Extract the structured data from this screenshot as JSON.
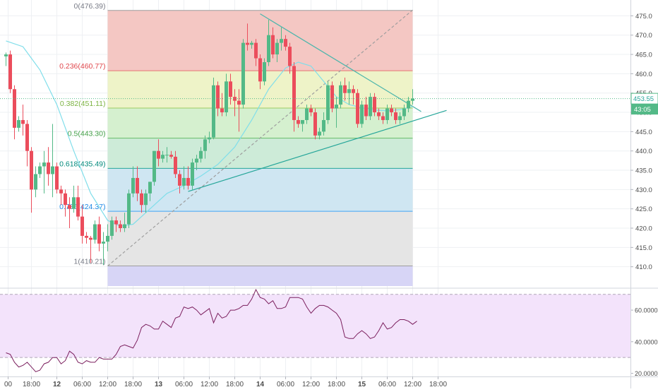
{
  "chart_data": [
    {
      "type": "candlestick",
      "title": "",
      "xlabel": "",
      "ylabel": "",
      "ylim": [
        405,
        478
      ],
      "price_ticks": [
        410,
        415,
        420,
        425,
        430,
        435,
        440,
        445,
        450,
        455,
        460,
        465,
        470,
        475
      ],
      "x_ticks": [
        {
          "label": "00",
          "bar": 0.5,
          "bold": false
        },
        {
          "label": "18:00",
          "bar": 6,
          "bold": false
        },
        {
          "label": "12",
          "bar": 12,
          "bold": true
        },
        {
          "label": "06:00",
          "bar": 18,
          "bold": false
        },
        {
          "label": "12:00",
          "bar": 24,
          "bold": false
        },
        {
          "label": "18:00",
          "bar": 30,
          "bold": false
        },
        {
          "label": "13",
          "bar": 36,
          "bold": true
        },
        {
          "label": "06:00",
          "bar": 42,
          "bold": false
        },
        {
          "label": "12:00",
          "bar": 48,
          "bold": false
        },
        {
          "label": "18:00",
          "bar": 54,
          "bold": false
        },
        {
          "label": "14",
          "bar": 60,
          "bold": true
        },
        {
          "label": "06:00",
          "bar": 66,
          "bold": false
        },
        {
          "label": "12:00",
          "bar": 72,
          "bold": false
        },
        {
          "label": "18:00",
          "bar": 78,
          "bold": false
        },
        {
          "label": "15",
          "bar": 84,
          "bold": true
        },
        {
          "label": "06:00",
          "bar": 90,
          "bold": false
        },
        {
          "label": "12:00",
          "bar": 96,
          "bold": false
        },
        {
          "label": "18:00",
          "bar": 102,
          "bold": false
        }
      ],
      "up_color": "#53b987",
      "down_color": "#eb4d5c",
      "candles": [
        [
          464.5,
          465.5,
          462,
          465
        ],
        [
          465,
          466,
          455,
          456
        ],
        [
          456,
          457,
          443,
          446
        ],
        [
          446,
          449,
          445,
          448
        ],
        [
          448,
          452,
          444,
          447
        ],
        [
          447,
          448,
          436,
          440
        ],
        [
          440,
          441,
          424,
          430
        ],
        [
          430,
          436,
          428,
          434
        ],
        [
          434,
          437,
          433,
          436
        ],
        [
          436,
          440,
          429,
          437
        ],
        [
          437,
          441,
          431,
          434
        ],
        [
          434,
          447,
          428,
          436
        ],
        [
          436,
          437,
          429,
          430
        ],
        [
          430,
          431,
          426,
          429
        ],
        [
          429,
          430,
          423,
          426
        ],
        [
          426,
          428,
          420,
          425
        ],
        [
          425,
          431,
          424,
          428
        ],
        [
          428,
          431,
          422,
          423
        ],
        [
          423,
          426,
          416,
          418
        ],
        [
          418,
          419,
          416,
          417.5
        ],
        [
          417.5,
          418,
          411,
          417
        ],
        [
          417,
          422,
          416,
          421
        ],
        [
          421,
          423,
          414,
          416
        ],
        [
          416,
          419,
          410.5,
          416.5
        ],
        [
          416.5,
          421,
          414,
          418
        ],
        [
          418,
          423,
          417,
          422
        ],
        [
          422,
          423,
          419,
          421
        ],
        [
          421,
          422,
          419,
          420
        ],
        [
          420,
          424,
          419,
          421
        ],
        [
          421,
          430,
          420,
          429
        ],
        [
          429,
          436,
          428,
          433
        ],
        [
          433,
          436,
          427,
          429
        ],
        [
          429,
          430,
          424,
          426
        ],
        [
          426,
          430,
          424,
          429
        ],
        [
          429,
          432,
          427,
          432
        ],
        [
          432,
          440,
          431,
          440
        ],
        [
          440,
          443,
          436,
          438
        ],
        [
          438,
          440,
          437,
          439
        ],
        [
          439,
          441,
          437,
          439
        ],
        [
          439,
          440,
          438,
          438.5
        ],
        [
          438.5,
          440,
          433,
          434
        ],
        [
          434,
          435,
          429,
          431
        ],
        [
          431,
          436,
          430,
          433
        ],
        [
          433,
          436,
          430,
          431
        ],
        [
          431,
          438,
          430,
          437
        ],
        [
          437,
          439,
          435,
          438
        ],
        [
          438,
          441,
          437,
          440
        ],
        [
          440,
          444,
          438,
          443
        ],
        [
          443,
          445,
          442,
          443.5
        ],
        [
          443.5,
          459,
          443,
          457
        ],
        [
          457,
          458,
          449,
          451
        ],
        [
          451,
          455,
          449,
          450
        ],
        [
          450,
          460,
          449,
          458
        ],
        [
          458,
          460,
          452,
          454
        ],
        [
          454,
          456,
          449,
          453
        ],
        [
          453,
          456,
          445,
          452
        ],
        [
          452,
          469,
          451,
          468
        ],
        [
          468,
          473,
          466,
          467.5
        ],
        [
          467.5,
          468.5,
          466.5,
          468
        ],
        [
          468,
          469,
          462,
          464
        ],
        [
          464,
          465,
          456,
          458
        ],
        [
          458,
          464,
          457,
          463
        ],
        [
          463,
          474,
          462,
          470
        ],
        [
          470,
          472,
          464,
          465
        ],
        [
          465,
          469,
          463,
          468
        ],
        [
          468,
          472,
          466,
          469
        ],
        [
          469,
          470,
          466,
          467
        ],
        [
          467,
          468,
          460,
          462
        ],
        [
          462,
          463,
          445,
          448
        ],
        [
          448,
          449,
          446,
          447
        ],
        [
          447,
          448,
          445,
          448
        ],
        [
          448,
          452,
          447,
          451
        ],
        [
          451,
          452,
          449,
          450
        ],
        [
          450,
          451,
          443,
          444
        ],
        [
          444,
          446,
          443,
          445
        ],
        [
          445,
          450,
          444,
          448
        ],
        [
          448,
          458,
          447,
          457
        ],
        [
          457,
          458,
          450,
          451
        ],
        [
          451,
          454,
          446,
          452
        ],
        [
          452,
          458,
          451,
          457
        ],
        [
          457,
          459,
          453,
          455
        ],
        [
          455,
          458,
          452,
          456
        ],
        [
          456,
          457,
          452,
          455
        ],
        [
          455,
          456,
          446,
          447
        ],
        [
          447,
          453,
          446,
          452
        ],
        [
          452,
          454,
          448,
          449
        ],
        [
          449,
          455,
          448,
          454
        ],
        [
          454,
          455,
          449,
          450
        ],
        [
          450,
          451,
          448,
          449
        ],
        [
          449,
          450,
          447,
          448
        ],
        [
          448,
          452,
          447,
          451
        ],
        [
          451,
          452,
          449,
          450
        ],
        [
          450,
          451,
          447,
          448
        ],
        [
          448,
          450,
          447,
          449
        ],
        [
          449,
          452,
          448,
          451
        ],
        [
          451,
          454,
          450,
          453
        ],
        [
          453,
          456,
          452,
          453.55
        ]
      ],
      "moving_average": [
        [
          0,
          468.5
        ],
        [
          4,
          467
        ],
        [
          8,
          461
        ],
        [
          12,
          452
        ],
        [
          16,
          440
        ],
        [
          20,
          429
        ],
        [
          24,
          422
        ],
        [
          27,
          420.5
        ],
        [
          30,
          421
        ],
        [
          34,
          425
        ],
        [
          38,
          429
        ],
        [
          42,
          431
        ],
        [
          46,
          433.5
        ],
        [
          50,
          436.5
        ],
        [
          54,
          441
        ],
        [
          58,
          448
        ],
        [
          62,
          456
        ],
        [
          66,
          461.5
        ],
        [
          69,
          463
        ],
        [
          72,
          462
        ],
        [
          75,
          458
        ],
        [
          78,
          454
        ],
        [
          81,
          452
        ],
        [
          84,
          451.2
        ],
        [
          87,
          450.6
        ],
        [
          90,
          450.4
        ],
        [
          93,
          450.7
        ],
        [
          96,
          451.5
        ]
      ],
      "trendlines": [
        {
          "from": [
            24,
            410.21
          ],
          "to": [
            96,
            476.5
          ],
          "style": "dashed",
          "color": "#9e9e9e"
        },
        {
          "from": [
            60,
            475.5
          ],
          "to": [
            98,
            450.2
          ],
          "style": "solid",
          "color": "#4db6ac"
        },
        {
          "from": [
            43,
            429.5
          ],
          "to": [
            104,
            450.5
          ],
          "style": "solid",
          "color": "#26a69a"
        }
      ],
      "fibonacci": {
        "start_bar": 24,
        "end_bar": 96,
        "levels": [
          {
            "label": "0(476.39)",
            "price": 476.39,
            "line": "#9e9e9e",
            "text": "#787b86"
          },
          {
            "label": "0.236(460.77)",
            "price": 460.77,
            "line": "#e57373",
            "text": "#e0474c"
          },
          {
            "label": "0.382(451.11)",
            "price": 451.11,
            "line": "#9ccc65",
            "text": "#7cb342"
          },
          {
            "label": "0.5(443.30)",
            "price": 443.3,
            "line": "#66bb6a",
            "text": "#43a047"
          },
          {
            "label": "0.618(435.49)",
            "price": 435.49,
            "line": "#26a69a",
            "text": "#00897b"
          },
          {
            "label": "0.786(424.37)",
            "price": 424.37,
            "line": "#42a5f5",
            "text": "#1e88e5"
          },
          {
            "label": "1(410.21)",
            "price": 410.21,
            "line": "#9e9e9e",
            "text": "#787b86"
          }
        ],
        "fills": [
          {
            "from": 476.39,
            "to": 460.77,
            "color": "#f4c7c3"
          },
          {
            "from": 460.77,
            "to": 451.11,
            "color": "#eef3c8"
          },
          {
            "from": 451.11,
            "to": 443.3,
            "color": "#d5f0cf"
          },
          {
            "from": 443.3,
            "to": 435.49,
            "color": "#cdebd8"
          },
          {
            "from": 435.49,
            "to": 424.37,
            "color": "#cfe6f2"
          },
          {
            "from": 424.37,
            "to": 410.21,
            "color": "#e5e5e5"
          },
          {
            "from": 410.21,
            "to": 405,
            "color": "#d7d5f6"
          }
        ]
      },
      "last_price": "453.55",
      "countdown": "43:05",
      "current_price_line": 453.55
    },
    {
      "type": "line",
      "title": "",
      "xlabel": "",
      "ylabel": "",
      "ylim": [
        18,
        73
      ],
      "ticks": [
        "20.0000",
        "40.0000",
        "60.0000"
      ],
      "tick_values": [
        20,
        40,
        60
      ],
      "band": [
        30,
        70
      ],
      "band_color": "#f3e3fb",
      "line_color": "#7b1f5e",
      "values": [
        [
          0,
          33
        ],
        [
          1,
          32
        ],
        [
          2,
          27
        ],
        [
          3,
          24
        ],
        [
          4,
          25
        ],
        [
          5,
          27
        ],
        [
          6,
          24
        ],
        [
          7,
          21
        ],
        [
          8,
          22
        ],
        [
          9,
          26
        ],
        [
          10,
          27
        ],
        [
          11,
          30
        ],
        [
          12,
          30
        ],
        [
          13,
          26
        ],
        [
          14,
          28
        ],
        [
          15,
          34
        ],
        [
          16,
          32
        ],
        [
          17,
          27
        ],
        [
          18,
          26
        ],
        [
          19,
          28
        ],
        [
          20,
          27
        ],
        [
          21,
          27
        ],
        [
          22,
          30
        ],
        [
          23,
          29
        ],
        [
          24,
          29
        ],
        [
          25,
          29
        ],
        [
          26,
          32
        ],
        [
          27,
          37
        ],
        [
          28,
          38
        ],
        [
          29,
          37
        ],
        [
          30,
          36
        ],
        [
          31,
          41
        ],
        [
          32,
          49
        ],
        [
          33,
          51
        ],
        [
          34,
          50
        ],
        [
          35,
          48
        ],
        [
          36,
          48
        ],
        [
          37,
          53
        ],
        [
          38,
          51
        ],
        [
          39,
          49
        ],
        [
          40,
          55
        ],
        [
          41,
          56
        ],
        [
          42,
          62
        ],
        [
          43,
          61
        ],
        [
          44,
          62
        ],
        [
          45,
          60
        ],
        [
          46,
          57
        ],
        [
          47,
          59
        ],
        [
          48,
          61
        ],
        [
          49,
          52
        ],
        [
          50,
          58
        ],
        [
          51,
          55
        ],
        [
          52,
          56
        ],
        [
          53,
          60
        ],
        [
          54,
          60
        ],
        [
          55,
          61
        ],
        [
          56,
          63
        ],
        [
          57,
          63
        ],
        [
          58,
          67
        ],
        [
          59,
          73
        ],
        [
          60,
          68
        ],
        [
          61,
          67
        ],
        [
          62,
          64
        ],
        [
          63,
          66
        ],
        [
          64,
          61
        ],
        [
          65,
          61
        ],
        [
          66,
          62
        ],
        [
          67,
          68
        ],
        [
          68,
          68
        ],
        [
          69,
          68
        ],
        [
          70,
          67
        ],
        [
          71,
          62
        ],
        [
          72,
          58
        ],
        [
          73,
          61
        ],
        [
          74,
          63
        ],
        [
          75,
          63
        ],
        [
          76,
          62
        ],
        [
          77,
          60
        ],
        [
          78,
          58
        ],
        [
          79,
          54
        ],
        [
          80,
          43
        ],
        [
          81,
          42
        ],
        [
          82,
          42
        ],
        [
          83,
          45
        ],
        [
          84,
          47
        ],
        [
          85,
          45
        ],
        [
          86,
          42
        ],
        [
          87,
          43
        ],
        [
          88,
          47
        ],
        [
          89,
          52
        ],
        [
          90,
          48
        ],
        [
          91,
          49
        ],
        [
          92,
          52
        ],
        [
          93,
          54
        ],
        [
          94,
          54
        ],
        [
          95,
          53
        ],
        [
          96,
          51
        ],
        [
          97,
          53
        ]
      ]
    }
  ]
}
